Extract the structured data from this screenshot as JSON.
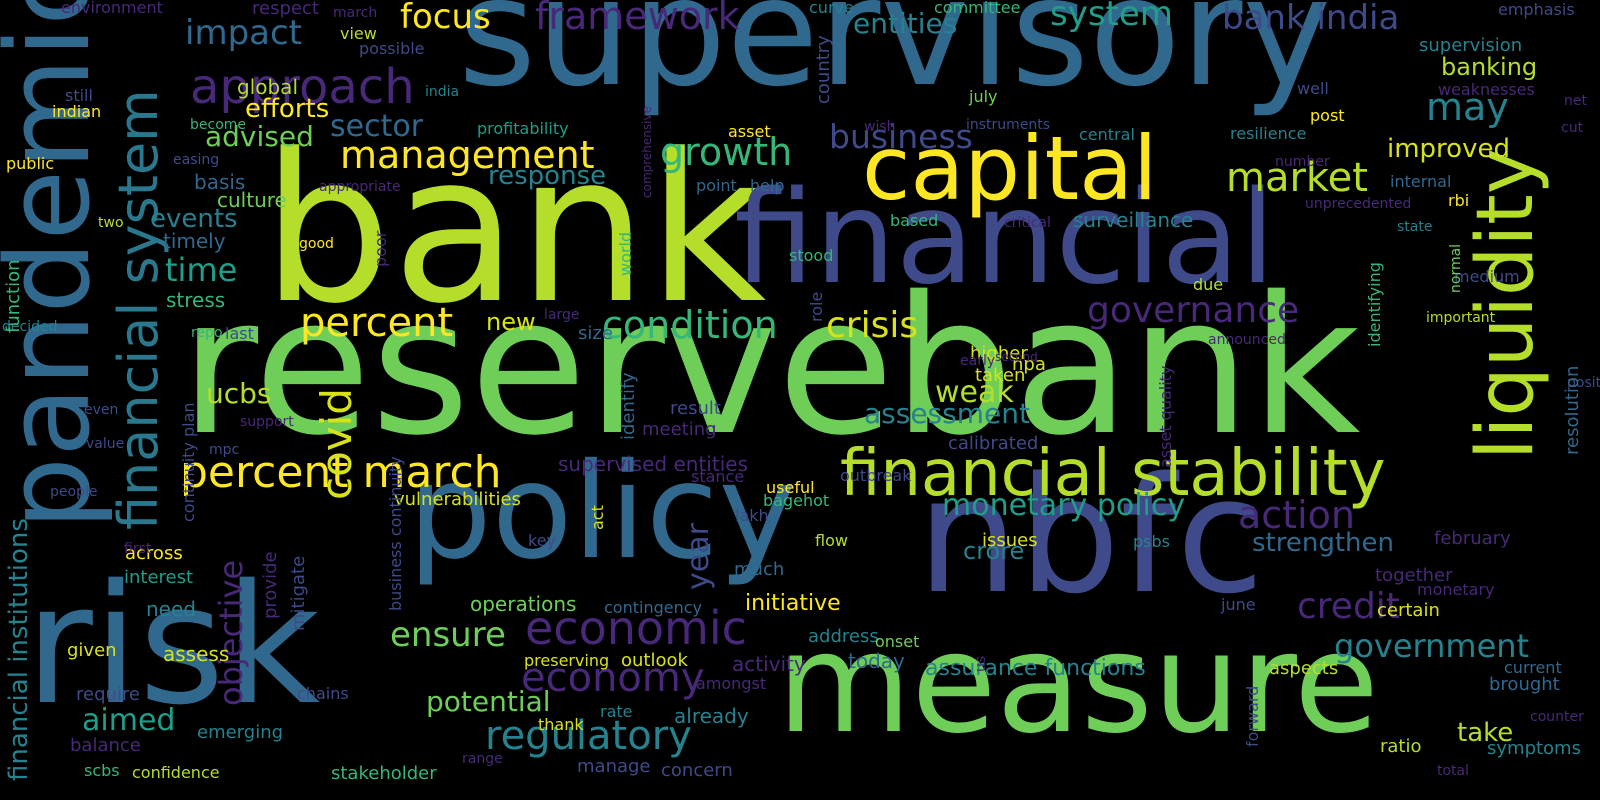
{
  "colors": {
    "background": "#000000",
    "palette_viridis": [
      "#440154",
      "#482878",
      "#3e4a89",
      "#31688e",
      "#26828e",
      "#1f9e89",
      "#35b779",
      "#6ece58",
      "#b5de2b",
      "#fde725"
    ]
  },
  "words": [
    {
      "text": "bank",
      "color": "#b5de2b"
    },
    {
      "text": "reserve",
      "color": "#6ece58"
    },
    {
      "text": "bank",
      "color": "#6ece58"
    },
    {
      "text": "supervisory",
      "color": "#31688e"
    },
    {
      "text": "financial",
      "color": "#3e4a89"
    },
    {
      "text": "nbfc",
      "color": "#3e4a89"
    },
    {
      "text": "measure",
      "color": "#6ece58"
    },
    {
      "text": "policy",
      "color": "#31688e"
    },
    {
      "text": "risk",
      "color": "#31688e"
    },
    {
      "text": "pandemic",
      "color": "#31688e"
    },
    {
      "text": "capital",
      "color": "#fde725"
    },
    {
      "text": "liquidity",
      "color": "#b5de2b"
    },
    {
      "text": "financial stability",
      "color": "#b5de2b"
    },
    {
      "text": "financial system",
      "color": "#2a788e"
    },
    {
      "text": "approach",
      "color": "#482878"
    },
    {
      "text": "economic",
      "color": "#482878"
    },
    {
      "text": "regulatory",
      "color": "#26828e"
    },
    {
      "text": "percent march",
      "color": "#fde725"
    },
    {
      "text": "management",
      "color": "#fde725"
    },
    {
      "text": "condition",
      "color": "#35b779"
    },
    {
      "text": "crisis",
      "color": "#d8e219"
    },
    {
      "text": "market",
      "color": "#b5de2b"
    },
    {
      "text": "governance",
      "color": "#482878"
    },
    {
      "text": "percent",
      "color": "#fde725"
    },
    {
      "text": "growth",
      "color": "#35b779"
    },
    {
      "text": "economy",
      "color": "#482878"
    },
    {
      "text": "action",
      "color": "#482878"
    },
    {
      "text": "covid",
      "color": "#d8e219"
    },
    {
      "text": "framework",
      "color": "#482878"
    },
    {
      "text": "system",
      "color": "#1f9e89"
    },
    {
      "text": "bank india",
      "color": "#3e4a89"
    },
    {
      "text": "impact",
      "color": "#31688e"
    },
    {
      "text": "focus",
      "color": "#fde725"
    },
    {
      "text": "sector",
      "color": "#31688e"
    },
    {
      "text": "business",
      "color": "#3e4a89"
    },
    {
      "text": "may",
      "color": "#26828e"
    },
    {
      "text": "credit",
      "color": "#482878"
    },
    {
      "text": "government",
      "color": "#26828e"
    },
    {
      "text": "ensure",
      "color": "#6ece58"
    },
    {
      "text": "monetary policy",
      "color": "#1f9e89"
    },
    {
      "text": "assessment",
      "color": "#26828e"
    },
    {
      "text": "strengthen",
      "color": "#31688e"
    },
    {
      "text": "take",
      "color": "#b5de2b"
    },
    {
      "text": "potential",
      "color": "#6ece58"
    },
    {
      "text": "aimed",
      "color": "#1f9e89"
    },
    {
      "text": "objective",
      "color": "#482878"
    },
    {
      "text": "year",
      "color": "#3e4a89"
    },
    {
      "text": "time",
      "color": "#1f9e89"
    },
    {
      "text": "weak",
      "color": "#b5de2b"
    },
    {
      "text": "ucbs",
      "color": "#b5de2b"
    },
    {
      "text": "efforts",
      "color": "#fde725"
    },
    {
      "text": "advised",
      "color": "#6ece58"
    },
    {
      "text": "response",
      "color": "#26828e"
    },
    {
      "text": "improved",
      "color": "#d8e219"
    },
    {
      "text": "banking",
      "color": "#b5de2b"
    },
    {
      "text": "new",
      "color": "#d8e219"
    },
    {
      "text": "events",
      "color": "#26828e"
    },
    {
      "text": "entities",
      "color": "#26828e"
    },
    {
      "text": "financial institutions",
      "color": "#26828e"
    },
    {
      "text": "supervised entities",
      "color": "#482878"
    },
    {
      "text": "operations",
      "color": "#6ece58"
    },
    {
      "text": "initiative",
      "color": "#fde725"
    },
    {
      "text": "assurance functions",
      "color": "#26828e"
    },
    {
      "text": "crore",
      "color": "#26828e"
    },
    {
      "text": "stress",
      "color": "#35b779"
    },
    {
      "text": "timely",
      "color": "#31688e"
    },
    {
      "text": "basis",
      "color": "#31688e"
    },
    {
      "text": "culture",
      "color": "#6ece58"
    },
    {
      "text": "global",
      "color": "#b5de2b"
    },
    {
      "text": "surveillance",
      "color": "#26828e"
    },
    {
      "text": "need",
      "color": "#26828e"
    },
    {
      "text": "across",
      "color": "#fde725"
    },
    {
      "text": "interest",
      "color": "#1f9e89"
    },
    {
      "text": "given",
      "color": "#d8e219"
    },
    {
      "text": "assess",
      "color": "#d8e219"
    },
    {
      "text": "require",
      "color": "#3e4a89"
    },
    {
      "text": "balance",
      "color": "#482878"
    },
    {
      "text": "emerging",
      "color": "#26828e"
    },
    {
      "text": "already",
      "color": "#26828e"
    },
    {
      "text": "activity",
      "color": "#482878"
    },
    {
      "text": "outlook",
      "color": "#d8e219"
    },
    {
      "text": "today",
      "color": "#31688e"
    },
    {
      "text": "issues",
      "color": "#d8e219"
    },
    {
      "text": "size",
      "color": "#31688e"
    },
    {
      "text": "taken",
      "color": "#d8e219"
    },
    {
      "text": "higher",
      "color": "#d8e219"
    },
    {
      "text": "npa",
      "color": "#d8e219"
    },
    {
      "text": "calibrated",
      "color": "#3e4a89"
    },
    {
      "text": "result",
      "color": "#3e4a89"
    },
    {
      "text": "meeting",
      "color": "#482878"
    },
    {
      "text": "vulnerabilities",
      "color": "#d8e219"
    },
    {
      "text": "useful",
      "color": "#fde725"
    },
    {
      "text": "bagehot",
      "color": "#35b779"
    },
    {
      "text": "outbreak",
      "color": "#3e4a89"
    },
    {
      "text": "stance",
      "color": "#482878"
    },
    {
      "text": "lakh",
      "color": "#3e4a89"
    },
    {
      "text": "flow",
      "color": "#b5de2b"
    },
    {
      "text": "key",
      "color": "#3e4a89"
    },
    {
      "text": "much",
      "color": "#31688e"
    },
    {
      "text": "address",
      "color": "#26828e"
    },
    {
      "text": "onset",
      "color": "#6ece58"
    },
    {
      "text": "amongst",
      "color": "#482878"
    },
    {
      "text": "preserving",
      "color": "#d8e219"
    },
    {
      "text": "contingency",
      "color": "#31688e"
    },
    {
      "text": "rate",
      "color": "#26828e"
    },
    {
      "text": "thank",
      "color": "#d8e219"
    },
    {
      "text": "manage",
      "color": "#3e4a89"
    },
    {
      "text": "concern",
      "color": "#3e4a89"
    },
    {
      "text": "stakeholder",
      "color": "#35b779"
    },
    {
      "text": "range",
      "color": "#482878"
    },
    {
      "text": "confidence",
      "color": "#b5de2b"
    },
    {
      "text": "scbs",
      "color": "#35b779"
    },
    {
      "text": "chains",
      "color": "#3e4a89"
    },
    {
      "text": "psbs",
      "color": "#26828e"
    },
    {
      "text": "february",
      "color": "#482878"
    },
    {
      "text": "together",
      "color": "#482878"
    },
    {
      "text": "certain",
      "color": "#d8e219"
    },
    {
      "text": "monetary",
      "color": "#482878"
    },
    {
      "text": "june",
      "color": "#3e4a89"
    },
    {
      "text": "aspects",
      "color": "#b5de2b"
    },
    {
      "text": "ratio",
      "color": "#b5de2b"
    },
    {
      "text": "total",
      "color": "#482878"
    },
    {
      "text": "symptoms",
      "color": "#26828e"
    },
    {
      "text": "current",
      "color": "#31688e"
    },
    {
      "text": "brought",
      "color": "#31688e"
    },
    {
      "text": "counter",
      "color": "#482878"
    },
    {
      "text": "environment",
      "color": "#482878"
    },
    {
      "text": "respect",
      "color": "#482878"
    },
    {
      "text": "march",
      "color": "#482878"
    },
    {
      "text": "view",
      "color": "#b5de2b"
    },
    {
      "text": "possible",
      "color": "#3e4a89"
    },
    {
      "text": "curve",
      "color": "#26828e"
    },
    {
      "text": "committee",
      "color": "#35b779"
    },
    {
      "text": "emphasis",
      "color": "#3e4a89"
    },
    {
      "text": "supervision",
      "color": "#26828e"
    },
    {
      "text": "weaknesses",
      "color": "#482878"
    },
    {
      "text": "net",
      "color": "#482878"
    },
    {
      "text": "post",
      "color": "#fde725"
    },
    {
      "text": "well",
      "color": "#3e4a89"
    },
    {
      "text": "resilience",
      "color": "#26828e"
    },
    {
      "text": "central",
      "color": "#26828e"
    },
    {
      "text": "instruments",
      "color": "#3e4a89"
    },
    {
      "text": "july",
      "color": "#6ece58"
    },
    {
      "text": "wish",
      "color": "#482878"
    },
    {
      "text": "asset",
      "color": "#fde725"
    },
    {
      "text": "profitability",
      "color": "#1f9e89"
    },
    {
      "text": "india",
      "color": "#26828e"
    },
    {
      "text": "indian",
      "color": "#fde725"
    },
    {
      "text": "still",
      "color": "#3e4a89"
    },
    {
      "text": "become",
      "color": "#35b779"
    },
    {
      "text": "public",
      "color": "#fde725"
    },
    {
      "text": "easing",
      "color": "#3e4a89"
    },
    {
      "text": "appropriate",
      "color": "#482878"
    },
    {
      "text": "point",
      "color": "#31688e"
    },
    {
      "text": "help",
      "color": "#31688e"
    },
    {
      "text": "cut",
      "color": "#482878"
    },
    {
      "text": "number",
      "color": "#482878"
    },
    {
      "text": "internal",
      "color": "#31688e"
    },
    {
      "text": "unprecedented",
      "color": "#482878"
    },
    {
      "text": "rbi",
      "color": "#fde725"
    },
    {
      "text": "state",
      "color": "#26828e"
    },
    {
      "text": "critical",
      "color": "#482878"
    },
    {
      "text": "based",
      "color": "#35b779"
    },
    {
      "text": "stood",
      "color": "#35b779"
    },
    {
      "text": "due",
      "color": "#b5de2b"
    },
    {
      "text": "medium",
      "color": "#3e4a89"
    },
    {
      "text": "important",
      "color": "#b5de2b"
    },
    {
      "text": "position",
      "color": "#3e4a89"
    },
    {
      "text": "announced",
      "color": "#482878"
    },
    {
      "text": "second",
      "color": "#482878"
    },
    {
      "text": "early",
      "color": "#482878"
    },
    {
      "text": "good",
      "color": "#fde725"
    },
    {
      "text": "two",
      "color": "#b5de2b"
    },
    {
      "text": "decided",
      "color": "#26828e"
    },
    {
      "text": "repo",
      "color": "#35b779"
    },
    {
      "text": "last",
      "color": "#3e4a89"
    },
    {
      "text": "large",
      "color": "#482878"
    },
    {
      "text": "support",
      "color": "#482878"
    },
    {
      "text": "mpc",
      "color": "#3e4a89"
    },
    {
      "text": "value",
      "color": "#3e4a89"
    },
    {
      "text": "even",
      "color": "#3e4a89"
    },
    {
      "text": "people",
      "color": "#3e4a89"
    },
    {
      "text": "first",
      "color": "#482878"
    },
    {
      "text": "function",
      "color": "#35b779"
    },
    {
      "text": "comprehensive",
      "color": "#482878"
    },
    {
      "text": "country",
      "color": "#3e4a89"
    },
    {
      "text": "world",
      "color": "#35b779"
    },
    {
      "text": "role",
      "color": "#3e4a89"
    },
    {
      "text": "poor",
      "color": "#482878"
    },
    {
      "text": "identify",
      "color": "#31688e"
    },
    {
      "text": "act",
      "color": "#d8e219"
    },
    {
      "text": "provide",
      "color": "#482878"
    },
    {
      "text": "mitigate",
      "color": "#3e4a89"
    },
    {
      "text": "business continuity",
      "color": "#3e4a89"
    },
    {
      "text": "continuity plan",
      "color": "#3e4a89"
    },
    {
      "text": "asset quality",
      "color": "#482878"
    },
    {
      "text": "identifying",
      "color": "#35b779"
    },
    {
      "text": "normal",
      "color": "#6ece58"
    },
    {
      "text": "resolution",
      "color": "#31688e"
    },
    {
      "text": "us",
      "color": "#482878"
    },
    {
      "text": "forward",
      "color": "#3e4a89"
    }
  ]
}
